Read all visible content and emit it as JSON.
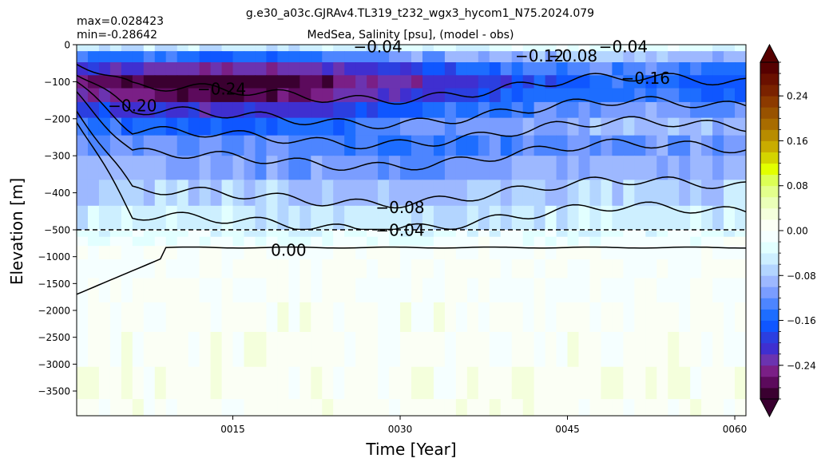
{
  "chart_data": {
    "type": "heatmap",
    "suptitle": "g.e30_a03c.GJRAv4.TL319_t232_wgx3_hycom1_N75.2024.079",
    "title": "MedSea, Salinity [psu], (model - obs)",
    "stats": {
      "max": "max=0.028423",
      "min": "min=-0.28642"
    },
    "xlabel": "Time [Year]",
    "ylabel": "Elevation [m]",
    "xlim": [
      1,
      61
    ],
    "x_ticks": [
      {
        "value": 15,
        "label": "0015"
      },
      {
        "value": 30,
        "label": "0030"
      },
      {
        "value": 45,
        "label": "0045"
      },
      {
        "value": 60,
        "label": "0060"
      }
    ],
    "upper_panel": {
      "ylim": [
        -500,
        0
      ],
      "y_ticks": [
        {
          "value": 0,
          "label": "0"
        },
        {
          "value": -100,
          "label": "−100"
        },
        {
          "value": -200,
          "label": "−200"
        },
        {
          "value": -300,
          "label": "−300"
        },
        {
          "value": -400,
          "label": "−400"
        },
        {
          "value": -500,
          "label": "−500"
        }
      ]
    },
    "lower_panel": {
      "ylim": [
        -3960,
        -500
      ],
      "y_ticks": [
        {
          "value": -1000,
          "label": "−1000"
        },
        {
          "value": -1500,
          "label": "−1500"
        },
        {
          "value": -2000,
          "label": "−2000"
        },
        {
          "value": -2500,
          "label": "−2500"
        },
        {
          "value": -3000,
          "label": "−3000"
        },
        {
          "value": -3500,
          "label": "−3500"
        }
      ]
    },
    "depth_levels": [
      -5,
      -30,
      -65,
      -100,
      -135,
      -175,
      -220,
      -270,
      -330,
      -400,
      -470,
      -560,
      -700,
      -900,
      -1200,
      -1600,
      -2100,
      -2700,
      -3400,
      -3900
    ],
    "profile": [
      -0.05,
      -0.14,
      -0.22,
      -0.27,
      -0.25,
      -0.19,
      -0.15,
      -0.12,
      -0.1,
      -0.07,
      -0.05,
      -0.03,
      -0.015,
      -0.005,
      0.0,
      0.0,
      0.005,
      0.005,
      0.01,
      0.008
    ],
    "contour_levels": [
      -0.24,
      -0.2,
      -0.16,
      -0.12,
      -0.08,
      -0.04,
      0.0
    ],
    "contour_labels": [
      {
        "text": "−0.04",
        "time": 28,
        "depth": -5
      },
      {
        "text": "−0.04",
        "time": 50,
        "depth": -5
      },
      {
        "text": "−0.12",
        "time": 42.5,
        "depth": -30
      },
      {
        "text": "−0.08",
        "time": 45.5,
        "depth": -30
      },
      {
        "text": "−0.16",
        "time": 52,
        "depth": -90
      },
      {
        "text": "−0.20",
        "time": 6,
        "depth": -165
      },
      {
        "text": "−0.24",
        "time": 14,
        "depth": -120
      },
      {
        "text": "−0.08",
        "time": 30,
        "depth": -440
      },
      {
        "text": "−0.04",
        "time": 30,
        "depth": -505
      },
      {
        "text": "0.00",
        "time": 20,
        "depth": -880
      }
    ],
    "colorbar": {
      "range": [
        -0.3,
        0.3
      ],
      "step": 0.02,
      "extend": "both",
      "ticks": [
        {
          "value": 0.24,
          "label": "0.24"
        },
        {
          "value": 0.16,
          "label": "0.16"
        },
        {
          "value": 0.08,
          "label": "0.08"
        },
        {
          "value": 0.0,
          "label": "0.00"
        },
        {
          "value": -0.08,
          "label": "−0.08"
        },
        {
          "value": -0.16,
          "label": "−0.16"
        },
        {
          "value": -0.24,
          "label": "−0.24"
        }
      ],
      "colors": [
        "#3a0030",
        "#5c0a5c",
        "#7a1f86",
        "#6b33b0",
        "#3f2fd0",
        "#2b3fe0",
        "#0f56ff",
        "#1d6dff",
        "#4d85ff",
        "#7a9dff",
        "#9db8ff",
        "#b3d5ff",
        "#cdefff",
        "#e2ffff",
        "#f5ffff",
        "#fbfff5",
        "#f4ffdc",
        "#eaffb8",
        "#e3ff8c",
        "#dcff55",
        "#e2ff00",
        "#d4d400",
        "#c9ac00",
        "#b88c00",
        "#a86c00",
        "#985200",
        "#8c3a00",
        "#7a2200",
        "#6a1000",
        "#560000"
      ]
    }
  }
}
